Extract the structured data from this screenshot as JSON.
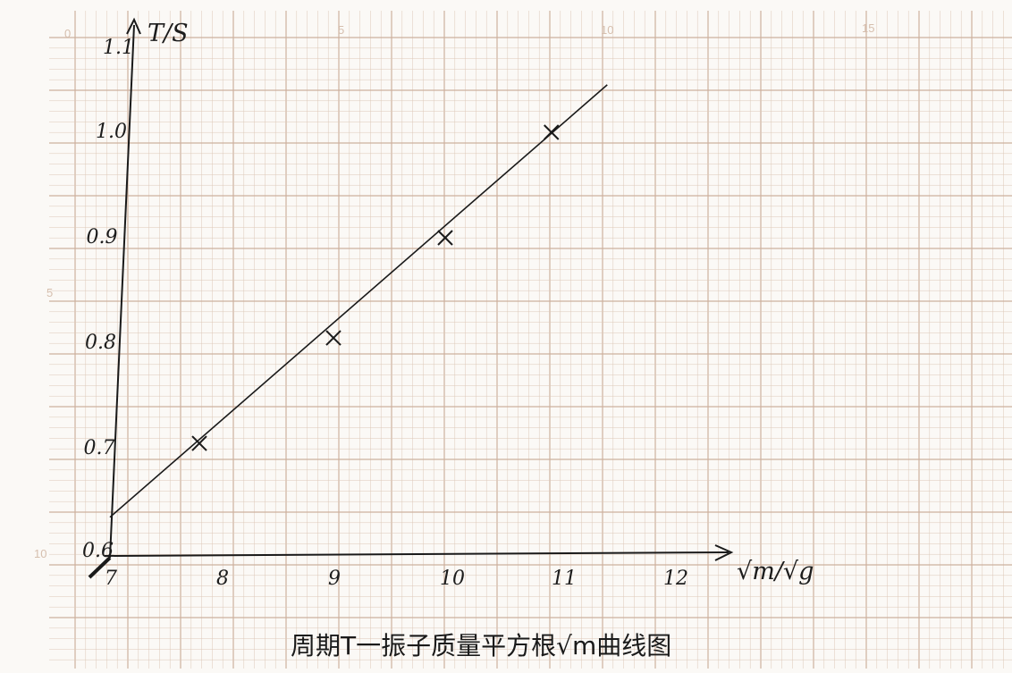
{
  "paper": {
    "grid_color": "#dcc8b8",
    "grid_major_color": "#cdb19e",
    "grid_numbers_top": [
      "0",
      "5",
      "10",
      "15"
    ],
    "grid_numbers_left": [
      "5",
      "10"
    ]
  },
  "chart_data": {
    "type": "line",
    "title": "周期T一振子质量平方根√m曲线图",
    "xlabel": "√m/√g",
    "ylabel": "T/S",
    "x_ticks": [
      "7",
      "8",
      "9",
      "10",
      "11",
      "12"
    ],
    "y_ticks": [
      "0.6",
      "0.7",
      "0.8",
      "0.9",
      "1.0",
      "1.1"
    ],
    "xlim": [
      7,
      12.5
    ],
    "ylim": [
      0.6,
      1.1
    ],
    "grid": true,
    "series": [
      {
        "marker": "x",
        "points": [
          {
            "x": 7.8,
            "y": 0.705
          },
          {
            "x": 9.0,
            "y": 0.805
          },
          {
            "x": 10.0,
            "y": 0.9
          },
          {
            "x": 10.95,
            "y": 1.0
          }
        ],
        "fit_line": [
          {
            "x": 7.0,
            "y": 0.635
          },
          {
            "x": 11.45,
            "y": 1.045
          }
        ]
      }
    ],
    "color": "#1a1a1a"
  }
}
